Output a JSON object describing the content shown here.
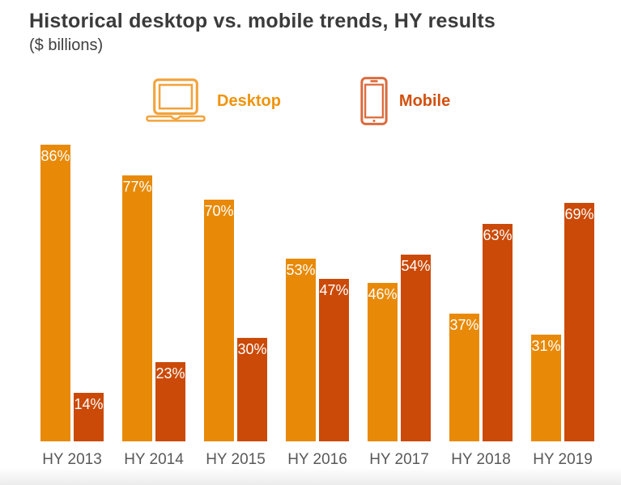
{
  "header": {
    "title": "Historical desktop vs. mobile trends, HY results",
    "subtitle": "($ billions)"
  },
  "legend": {
    "items": [
      {
        "label": "Desktop",
        "icon": "laptop-icon",
        "text_color": "#F0930B",
        "icon_color": "#F2A33C"
      },
      {
        "label": "Mobile",
        "icon": "smartphone-icon",
        "text_color": "#D2500E",
        "icon_color": "#DB6B3D"
      }
    ]
  },
  "chart_data": {
    "type": "bar",
    "title": "Historical desktop vs. mobile trends, HY results",
    "units_note": "($ billions)",
    "categories": [
      "HY 2013",
      "HY 2014",
      "HY 2015",
      "HY 2016",
      "HY 2017",
      "HY 2018",
      "HY 2019"
    ],
    "series": [
      {
        "name": "Desktop",
        "color": "#E88A08",
        "values": [
          86,
          77,
          70,
          53,
          46,
          37,
          31
        ]
      },
      {
        "name": "Mobile",
        "color": "#CB4A08",
        "values": [
          14,
          23,
          30,
          47,
          54,
          63,
          69
        ]
      }
    ],
    "value_suffix": "%",
    "value_label_color": "#ffffff",
    "ylim": [
      0,
      100
    ],
    "grid": false,
    "legend_position": "top",
    "xlabel": "",
    "ylabel": ""
  }
}
